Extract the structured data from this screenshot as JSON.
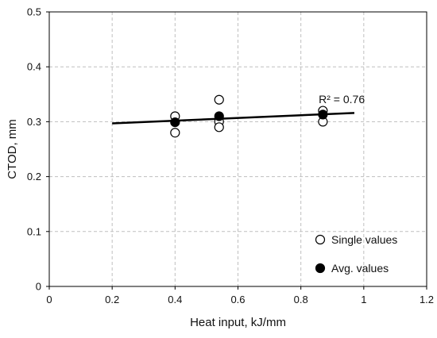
{
  "chart_data": {
    "type": "scatter",
    "title": "",
    "xlabel": "Heat input, kJ/mm",
    "ylabel": "CTOD, mm",
    "xlim": [
      0,
      1.2
    ],
    "ylim": [
      0,
      0.5
    ],
    "x_ticks": [
      0,
      0.2,
      0.4,
      0.6,
      0.8,
      1.0,
      1.2
    ],
    "x_tick_labels": [
      "0",
      "0.2",
      "0.4",
      "0.6",
      "0.8",
      "1",
      "1.2"
    ],
    "y_ticks": [
      0,
      0.1,
      0.2,
      0.3,
      0.4,
      0.5
    ],
    "y_tick_labels": [
      "0",
      "0.1",
      "0.2",
      "0.3",
      "0.4",
      "0.5"
    ],
    "grid": true,
    "legend_position": "bottom-right",
    "series": [
      {
        "name": "Single values",
        "marker": "open-circle",
        "points": [
          {
            "x": 0.4,
            "y": 0.31
          },
          {
            "x": 0.4,
            "y": 0.28
          },
          {
            "x": 0.54,
            "y": 0.34
          },
          {
            "x": 0.54,
            "y": 0.3
          },
          {
            "x": 0.54,
            "y": 0.29
          },
          {
            "x": 0.87,
            "y": 0.32
          },
          {
            "x": 0.87,
            "y": 0.3
          }
        ]
      },
      {
        "name": "Avg. values",
        "marker": "filled-circle",
        "points": [
          {
            "x": 0.4,
            "y": 0.299
          },
          {
            "x": 0.54,
            "y": 0.31
          },
          {
            "x": 0.87,
            "y": 0.313
          }
        ]
      }
    ],
    "trendline": {
      "x": [
        0.2,
        0.97
      ],
      "y": [
        0.297,
        0.316
      ]
    },
    "annotation": {
      "text": "R² = 0.76",
      "x": 0.93,
      "y": 0.334
    },
    "colors": {
      "axis": "#000000",
      "grid": "#bfbfbf",
      "marker": "#000000",
      "background": "#ffffff"
    }
  }
}
